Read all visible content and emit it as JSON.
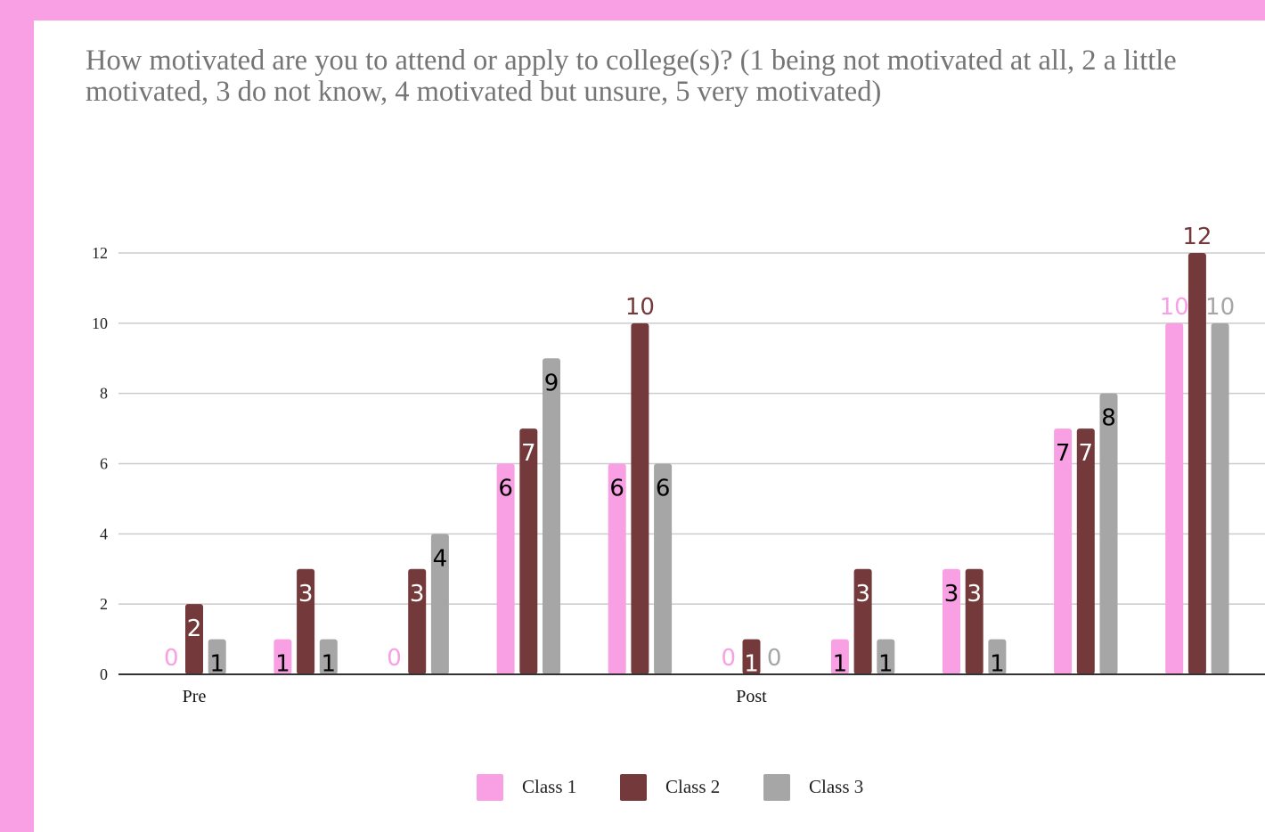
{
  "colors": {
    "class1": "#f8a0e3",
    "class2": "#74393a",
    "class3": "#a6a6a6",
    "page_background": "#f8a0e3"
  },
  "chart_data": {
    "type": "bar",
    "title": "How motivated are you to attend or apply to college(s)? (1 being not motivated at all, 2 a little motivated, 3 do not know, 4 motivated but unsure, 5 very motivated)",
    "xlabel": "",
    "ylabel": "",
    "ylim": [
      0,
      12
    ],
    "yticks": [
      0,
      2,
      4,
      6,
      8,
      10,
      12
    ],
    "grid": true,
    "legend_position": "bottom",
    "category_labels": [
      "Pre",
      "",
      "",
      "",
      "",
      "Post",
      "",
      "",
      "",
      ""
    ],
    "series": [
      {
        "name": "Class 1",
        "color": "#f8a0e3",
        "values": [
          0,
          1,
          0,
          6,
          6,
          0,
          1,
          3,
          7,
          10
        ]
      },
      {
        "name": "Class 2",
        "color": "#74393a",
        "values": [
          2,
          3,
          3,
          7,
          10,
          1,
          3,
          3,
          7,
          12
        ]
      },
      {
        "name": "Class 3",
        "color": "#a6a6a6",
        "values": [
          1,
          1,
          4,
          9,
          6,
          0,
          1,
          1,
          8,
          10
        ]
      }
    ]
  }
}
